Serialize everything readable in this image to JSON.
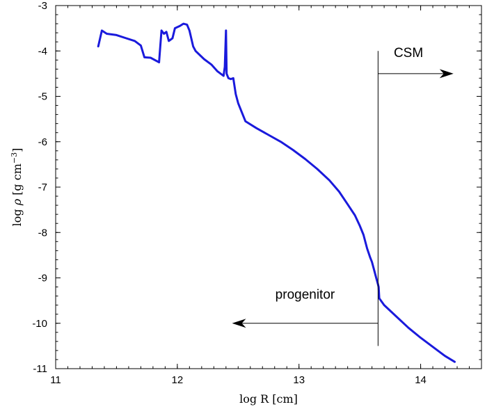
{
  "chart_data": {
    "type": "line",
    "xlabel": "log R [cm]",
    "ylabel": "log ρ [g cm⁻³]",
    "xlim": [
      11,
      14.5
    ],
    "ylim": [
      -11,
      -3
    ],
    "xticks": [
      11,
      12,
      13,
      14
    ],
    "xtick_labels": [
      "11",
      "12",
      "13",
      "14"
    ],
    "yticks": [
      -11,
      -10,
      -9,
      -8,
      -7,
      -6,
      -5,
      -4,
      -3
    ],
    "ytick_labels": [
      "-11",
      "-10",
      "-9",
      "-8",
      "-7",
      "-6",
      "-5",
      "-4",
      "-3"
    ],
    "grid": false,
    "line_color": "#1a1adc",
    "series": [
      {
        "points": [
          [
            11.35,
            -3.9
          ],
          [
            11.38,
            -3.55
          ],
          [
            11.42,
            -3.62
          ],
          [
            11.5,
            -3.65
          ],
          [
            11.58,
            -3.72
          ],
          [
            11.65,
            -3.78
          ],
          [
            11.7,
            -3.88
          ],
          [
            11.73,
            -4.14
          ],
          [
            11.78,
            -4.15
          ],
          [
            11.85,
            -4.25
          ],
          [
            11.87,
            -3.55
          ],
          [
            11.89,
            -3.62
          ],
          [
            11.91,
            -3.58
          ],
          [
            11.93,
            -3.78
          ],
          [
            11.96,
            -3.72
          ],
          [
            11.98,
            -3.5
          ],
          [
            12.02,
            -3.45
          ],
          [
            12.05,
            -3.4
          ],
          [
            12.08,
            -3.42
          ],
          [
            12.1,
            -3.55
          ],
          [
            12.13,
            -3.9
          ],
          [
            12.15,
            -4.0
          ],
          [
            12.22,
            -4.18
          ],
          [
            12.28,
            -4.3
          ],
          [
            12.33,
            -4.45
          ],
          [
            12.38,
            -4.55
          ],
          [
            12.39,
            -4.35
          ],
          [
            12.4,
            -3.55
          ],
          [
            12.405,
            -4.5
          ],
          [
            12.42,
            -4.6
          ],
          [
            12.44,
            -4.62
          ],
          [
            12.46,
            -4.6
          ],
          [
            12.48,
            -4.95
          ],
          [
            12.5,
            -5.15
          ],
          [
            12.53,
            -5.35
          ],
          [
            12.56,
            -5.55
          ],
          [
            12.65,
            -5.7
          ],
          [
            12.75,
            -5.85
          ],
          [
            12.85,
            -6.0
          ],
          [
            12.95,
            -6.18
          ],
          [
            13.05,
            -6.38
          ],
          [
            13.15,
            -6.6
          ],
          [
            13.25,
            -6.85
          ],
          [
            13.33,
            -7.1
          ],
          [
            13.4,
            -7.38
          ],
          [
            13.46,
            -7.62
          ],
          [
            13.5,
            -7.85
          ],
          [
            13.53,
            -8.05
          ],
          [
            13.56,
            -8.35
          ],
          [
            13.585,
            -8.55
          ],
          [
            13.6,
            -8.65
          ],
          [
            13.62,
            -8.85
          ],
          [
            13.635,
            -9.0
          ],
          [
            13.645,
            -9.1
          ],
          [
            13.655,
            -9.2
          ],
          [
            13.66,
            -9.45
          ],
          [
            13.7,
            -9.6
          ],
          [
            13.8,
            -9.85
          ],
          [
            13.9,
            -10.1
          ],
          [
            14.0,
            -10.32
          ],
          [
            14.1,
            -10.52
          ],
          [
            14.2,
            -10.72
          ],
          [
            14.28,
            -10.85
          ]
        ]
      }
    ],
    "annotations": [
      {
        "text": "CSM",
        "arrow_from": [
          13.65,
          -4.5
        ],
        "arrow_to": [
          14.27,
          -4.5
        ],
        "text_at": [
          13.9,
          -4.03
        ]
      },
      {
        "text": "progenitor",
        "arrow_from": [
          13.65,
          -10.0
        ],
        "arrow_to": [
          12.45,
          -10.0
        ],
        "text_at": [
          13.05,
          -9.35
        ]
      }
    ],
    "vertical_line": {
      "x": 13.65,
      "y_from": -4.0,
      "y_to": -10.5
    }
  }
}
